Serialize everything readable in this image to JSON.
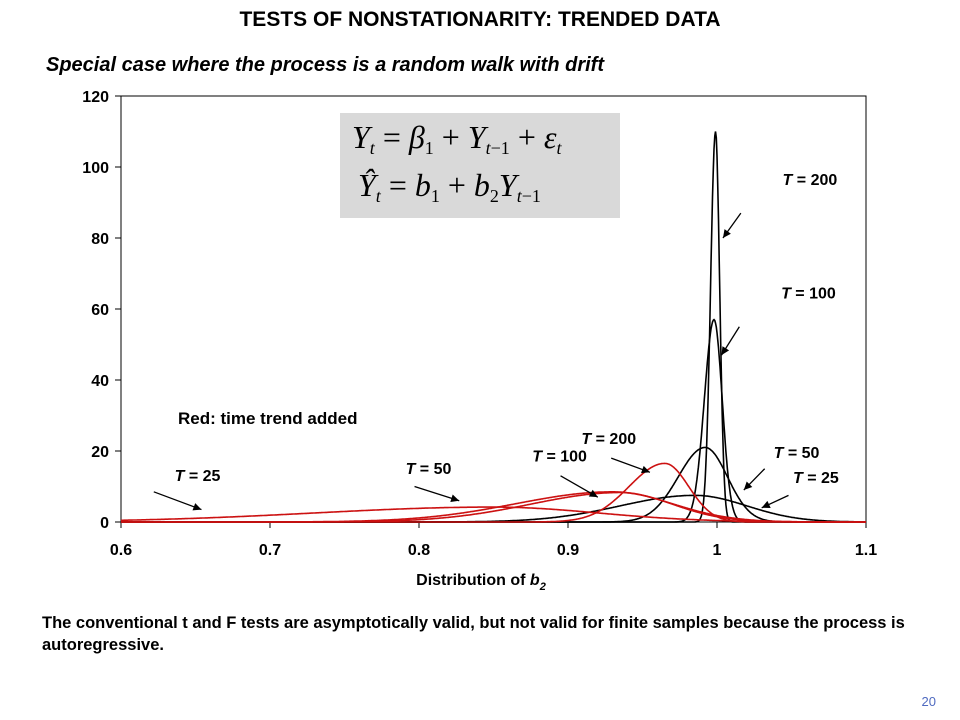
{
  "slide": {
    "title": "TESTS OF NONSTATIONARITY: TRENDED DATA",
    "subtitle": "Special case where the process is a random walk with drift",
    "footnote": "The conventional t and F tests are asymptotically valid, but not valid for finite samples because the process is autoregressive.",
    "slide_number": "20"
  },
  "equations": {
    "line1": "Y_t = β_1 + Y_{t-1} + ε_t",
    "line2": "Ŷ_t = b_1 + b_2 Y_{t-1}"
  },
  "chart_data": {
    "type": "line",
    "title": "",
    "xlabel": "Distribution of b2",
    "ylabel": "",
    "xlim": [
      0.6,
      1.1
    ],
    "ylim": [
      0,
      120
    ],
    "xticks": [
      "0.6",
      "0.7",
      "0.8",
      "0.9",
      "1",
      "1.1"
    ],
    "yticks": [
      "0",
      "20",
      "40",
      "60",
      "80",
      "100",
      "120"
    ],
    "grid": false,
    "legend": "none",
    "colors": {
      "black": "#000000",
      "red": "#cc1111",
      "panel": "#d9d9d9"
    },
    "annotation": "Red: time trend added",
    "series": [
      {
        "name": "T = 25",
        "color": "#000000",
        "mode": 0.985,
        "peak": 7.5,
        "sd_left": 0.05,
        "sd_right": 0.035
      },
      {
        "name": "T = 50",
        "color": "#000000",
        "mode": 0.992,
        "peak": 21,
        "sd_left": 0.018,
        "sd_right": 0.015
      },
      {
        "name": "T = 100",
        "color": "#000000",
        "mode": 0.998,
        "peak": 57,
        "sd_left": 0.0065,
        "sd_right": 0.0055
      },
      {
        "name": "T = 200",
        "color": "#000000",
        "mode": 0.999,
        "peak": 110,
        "sd_left": 0.0033,
        "sd_right": 0.0028
      },
      {
        "name": "T = 25",
        "color": "#cc1111",
        "mode": 0.85,
        "peak": 4.2,
        "sd_left": 0.12,
        "sd_right": 0.07
      },
      {
        "name": "T = 50",
        "color": "#cc1111",
        "mode": 0.93,
        "peak": 8.5,
        "sd_left": 0.065,
        "sd_right": 0.04
      },
      {
        "name": "T = 100",
        "color": "#cc1111",
        "mode": 0.935,
        "peak": 8.3,
        "sd_left": 0.06,
        "sd_right": 0.035
      },
      {
        "name": "T = 200",
        "color": "#cc1111",
        "mode": 0.965,
        "peak": 16.5,
        "sd_left": 0.024,
        "sd_right": 0.016
      }
    ],
    "labels": [
      {
        "text": "T = 200",
        "x": 1.044,
        "y": 95,
        "ax": 1.016,
        "ay": 87,
        "tx": 1.004,
        "ty": 80
      },
      {
        "text": "T = 100",
        "x": 1.043,
        "y": 63,
        "ax": 1.015,
        "ay": 55,
        "tx": 1.003,
        "ty": 47
      },
      {
        "text": "T = 50",
        "x": 1.038,
        "y": 18,
        "ax": 1.032,
        "ay": 15,
        "tx": 1.018,
        "ty": 9
      },
      {
        "text": "T = 25",
        "x": 1.051,
        "y": 11,
        "ax": 1.048,
        "ay": 7.5,
        "tx": 1.03,
        "ty": 4
      },
      {
        "text": "T = 200",
        "x": 0.909,
        "y": 22,
        "ax": 0.929,
        "ay": 18,
        "tx": 0.955,
        "ty": 14
      },
      {
        "text": "T = 100",
        "x": 0.876,
        "y": 17,
        "ax": 0.895,
        "ay": 13,
        "tx": 0.92,
        "ty": 7
      },
      {
        "text": "T = 50",
        "x": 0.791,
        "y": 13.5,
        "ax": 0.797,
        "ay": 10,
        "tx": 0.827,
        "ty": 6
      },
      {
        "text": "T = 25",
        "x": 0.636,
        "y": 11.5,
        "ax": 0.622,
        "ay": 8.5,
        "tx": 0.654,
        "ty": 3.5
      }
    ]
  }
}
